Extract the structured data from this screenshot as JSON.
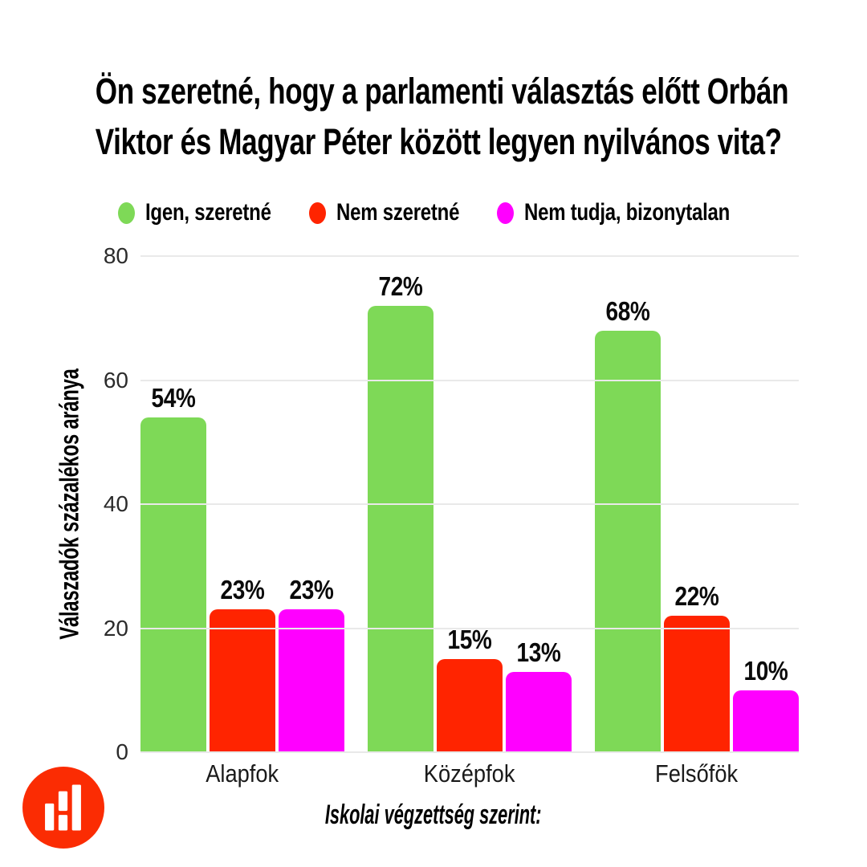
{
  "header": {
    "title_line1": "Ön szeretné, hogy a parlamenti választás előtt Orbán",
    "title_line2": "Viktor és Magyar Péter között legyen nyilvános vita?"
  },
  "chart_data": {
    "type": "bar",
    "categories": [
      "Alapfok",
      "Középfok",
      "Felsőfök"
    ],
    "series": [
      {
        "name": "Igen, szeretné",
        "color": "#7ED957",
        "values": [
          54,
          72,
          68
        ]
      },
      {
        "name": "Nem szeretné",
        "color": "#FF2400",
        "values": [
          23,
          15,
          22
        ]
      },
      {
        "name": "Nem tudja, bizonytalan",
        "color": "#FF00FF",
        "values": [
          23,
          13,
          10
        ]
      }
    ],
    "ylabel": "Válaszadók százalékos aránya",
    "xlabel": "Iskolai végzettség szerint:",
    "ylim": [
      0,
      80
    ],
    "yticks": [
      0,
      20,
      40,
      60,
      80
    ],
    "value_label_suffix": "%",
    "grid": "horizontal",
    "legend_position": "top"
  },
  "logo": {
    "icon": "bar-chart-logo",
    "background_color": "#FB2C03",
    "bar_color": "#FFFFFF"
  },
  "style": {
    "background": "#FFFFFF",
    "grid_color": "#E9E9E9",
    "tick_color": "#2B2B2B",
    "text_color": "#000000"
  }
}
